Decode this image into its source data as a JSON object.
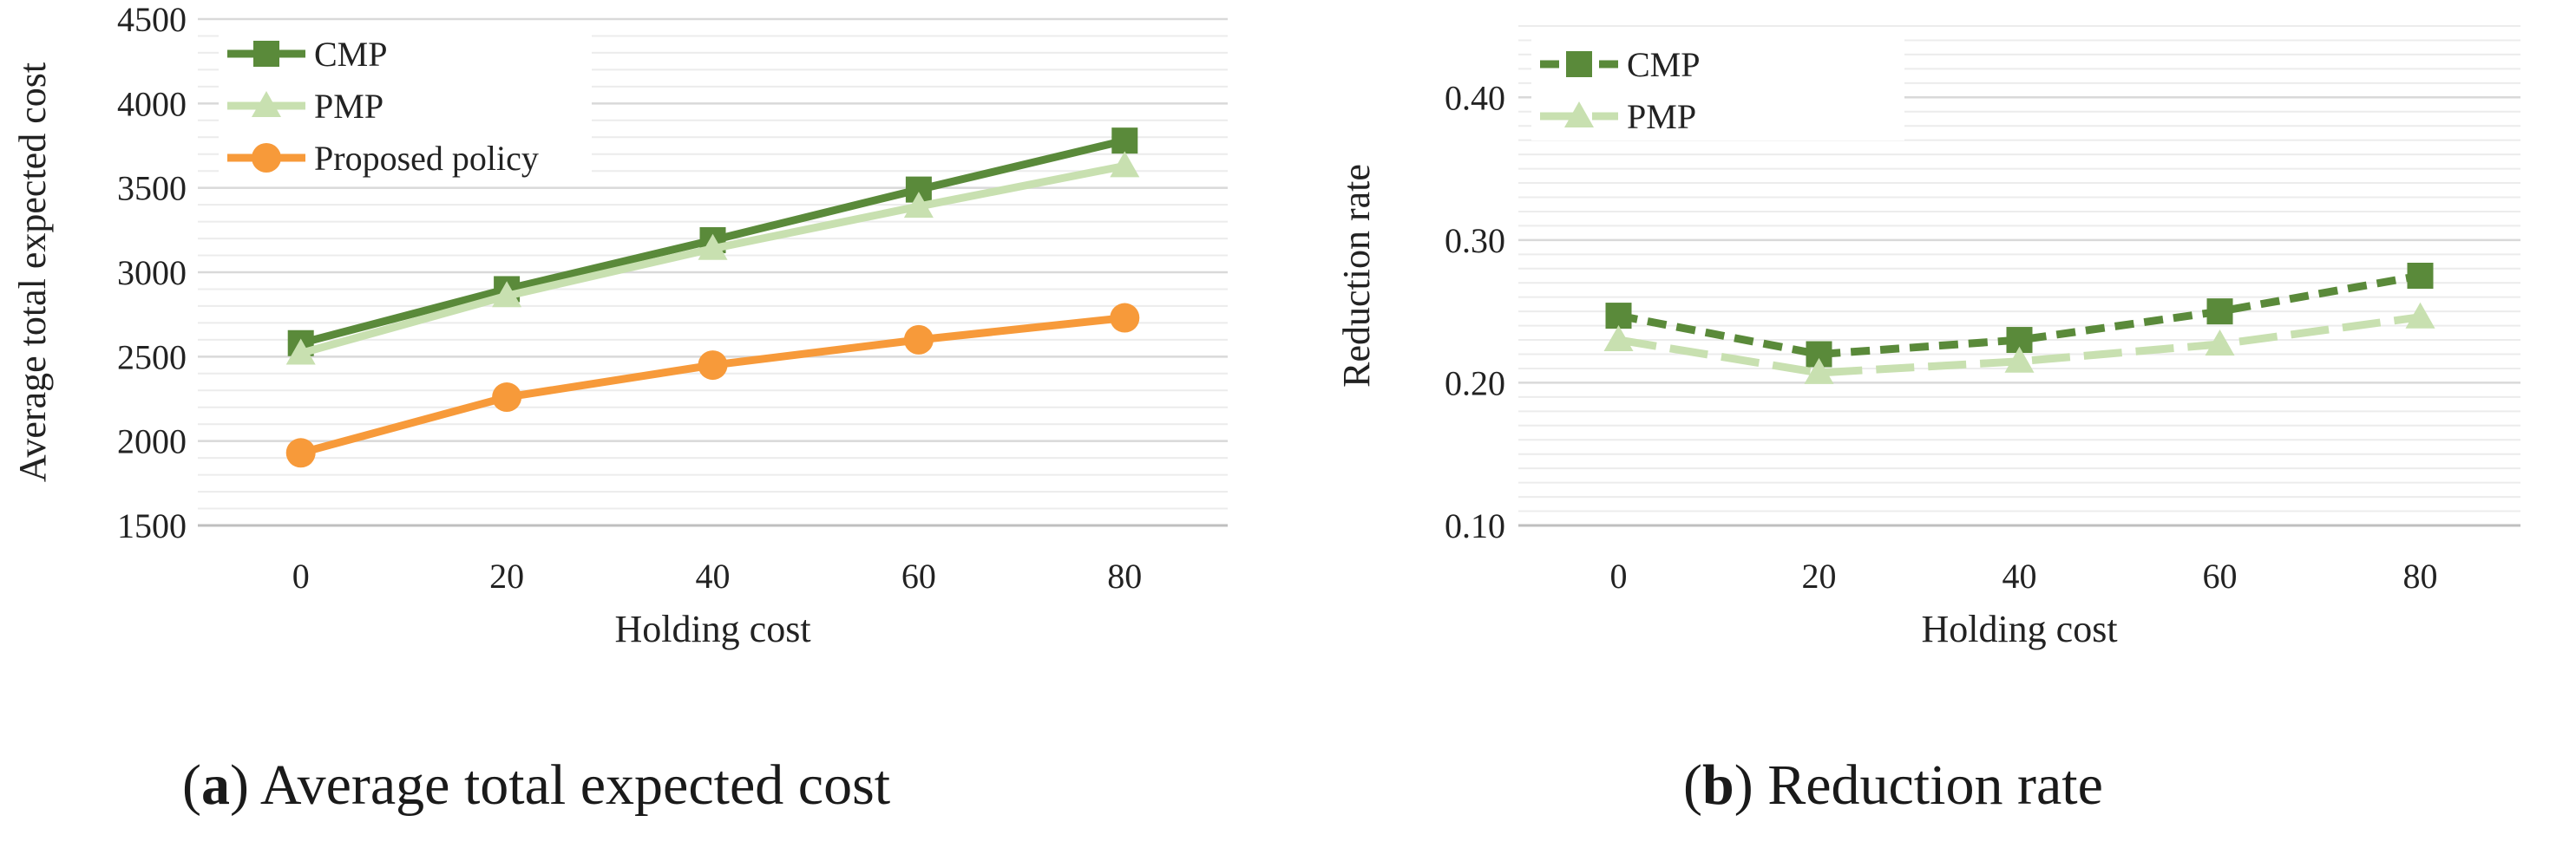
{
  "captions": {
    "a": {
      "label": "a",
      "text": "Average total expected cost"
    },
    "b": {
      "label": "b",
      "text": "Reduction rate"
    }
  },
  "colors": {
    "cmp": "#5a8a3a",
    "pmp": "#c8e0b0",
    "proposed": "#f79a3a",
    "grid": "#d9d9d9",
    "axis": "#bfbfbf",
    "text": "#222222"
  },
  "chart_data": [
    {
      "id": "a",
      "type": "line",
      "title": "",
      "xlabel": "Holding cost",
      "ylabel": "Average total expected cost",
      "categories": [
        "0",
        "20",
        "40",
        "60",
        "80"
      ],
      "ylim": [
        1500,
        4500
      ],
      "yticks": [
        1500,
        2000,
        2500,
        3000,
        3500,
        4000,
        4500
      ],
      "ytick_labels": [
        "1500",
        "2000",
        "2500",
        "3000",
        "3500",
        "4000",
        "4500"
      ],
      "legend_position": "top-left",
      "series": [
        {
          "name": "CMP",
          "style": "solid",
          "marker": "square",
          "color": "#5a8a3a",
          "values": [
            2580,
            2900,
            3190,
            3490,
            3780
          ]
        },
        {
          "name": "PMP",
          "style": "solid",
          "marker": "triangle",
          "color": "#c8e0b0",
          "values": [
            2520,
            2860,
            3140,
            3390,
            3630
          ]
        },
        {
          "name": "Proposed policy",
          "style": "solid",
          "marker": "circle",
          "color": "#f79a3a",
          "values": [
            1930,
            2260,
            2450,
            2600,
            2730
          ]
        }
      ]
    },
    {
      "id": "b",
      "type": "line",
      "title": "",
      "xlabel": "Holding cost",
      "ylabel": "Reduction rate",
      "categories": [
        "0",
        "20",
        "40",
        "60",
        "80"
      ],
      "ylim": [
        0.1,
        0.45
      ],
      "yticks": [
        0.1,
        0.2,
        0.3,
        0.4
      ],
      "ytick_labels": [
        "0.10",
        "0.20",
        "0.30",
        "0.40"
      ],
      "legend_position": "top-left",
      "series": [
        {
          "name": "CMP",
          "style": "dashed",
          "marker": "square",
          "color": "#5a8a3a",
          "values": [
            0.247,
            0.22,
            0.23,
            0.25,
            0.275
          ]
        },
        {
          "name": "PMP",
          "style": "longdash",
          "marker": "triangle",
          "color": "#c8e0b0",
          "values": [
            0.23,
            0.207,
            0.215,
            0.227,
            0.246
          ]
        }
      ]
    }
  ]
}
